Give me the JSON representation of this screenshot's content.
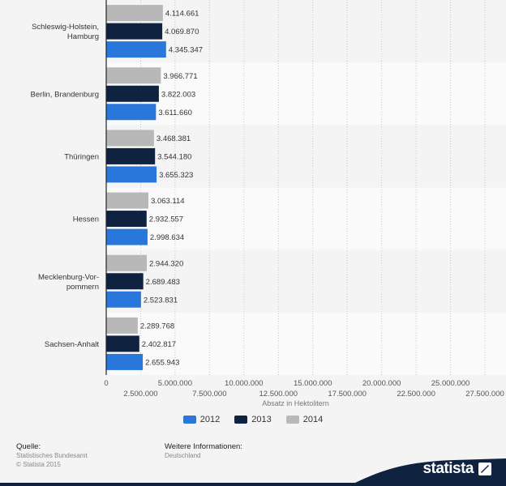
{
  "chart_data": {
    "type": "bar",
    "orientation": "horizontal",
    "categories": [
      "Schleswig-Holstein, Hamburg",
      "Berlin, Brandenburg",
      "Thüringen",
      "Hessen",
      "Mecklenburg-Vorpommern",
      "Sachsen-Anhalt"
    ],
    "category_lines": [
      [
        "Schleswig-Holstein,",
        "Hamburg"
      ],
      [
        "Berlin, Brandenburg"
      ],
      [
        "Thüringen"
      ],
      [
        "Hessen"
      ],
      [
        "Mecklenburg-Vor-",
        "pommern"
      ],
      [
        "Sachsen-Anhalt"
      ]
    ],
    "series": [
      {
        "name": "2014",
        "color": "#b8b8b8",
        "values": [
          4114661,
          3966771,
          3468381,
          3063114,
          2944320,
          2289768
        ],
        "labels": [
          "4.114.661",
          "3.966.771",
          "3.468.381",
          "3.063.114",
          "2.944.320",
          "2.289.768"
        ]
      },
      {
        "name": "2013",
        "color": "#0f2340",
        "values": [
          4069870,
          3822003,
          3544180,
          2932557,
          2689483,
          2402817
        ],
        "labels": [
          "4.069.870",
          "3.822.003",
          "3.544.180",
          "2.932.557",
          "2.689.483",
          "2.402.817"
        ]
      },
      {
        "name": "2012",
        "color": "#2a77dc",
        "values": [
          4345347,
          3611660,
          3655323,
          2998634,
          2523831,
          2655943
        ],
        "labels": [
          "4.345.347",
          "3.611.660",
          "3.655.323",
          "2.998.634",
          "2.523.831",
          "2.655.943"
        ]
      }
    ],
    "xlim": [
      0,
      27500000
    ],
    "xticks": [
      0,
      2500000,
      5000000,
      7500000,
      10000000,
      12500000,
      15000000,
      17500000,
      20000000,
      22500000,
      25000000,
      27500000
    ],
    "xtick_labels": [
      "0",
      "2.500.000",
      "5.000.000",
      "7.500.000",
      "10.000.000",
      "12.500.000",
      "15.000.000",
      "17.500.000",
      "20.000.000",
      "22.500.000",
      "25.000.000",
      "27.500.000"
    ],
    "xlabel": "Absatz in Hektolitern",
    "title": "",
    "legend": {
      "placement": "bottom",
      "order": [
        "2012",
        "2013",
        "2014"
      ]
    },
    "grid": true
  },
  "footer": {
    "source_heading": "Quelle:",
    "source_lines": [
      "Statistisches Bundesamt",
      "© Statista 2015"
    ],
    "info_heading": "Weitere Informationen:",
    "info_lines": [
      "Deutschland"
    ]
  },
  "brand": {
    "name": "statista"
  },
  "colors": {
    "footer_band": "#0f2340",
    "accent": "#2a77dc"
  }
}
